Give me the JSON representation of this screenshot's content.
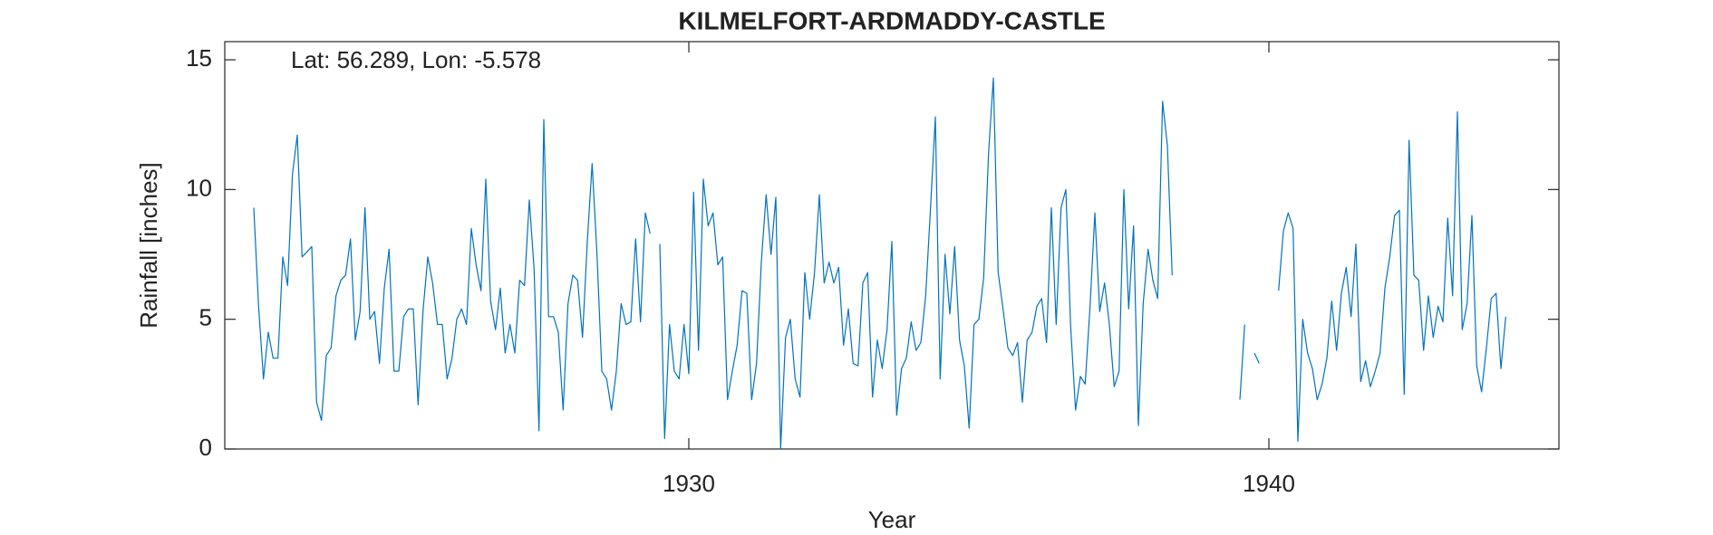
{
  "chart_data": {
    "type": "line",
    "title": "KILMELFORT-ARDMADDY-CASTLE",
    "annotation": "Lat: 56.289, Lon: -5.578",
    "x_label": "Year",
    "y_label": "Rainfall [inches]",
    "xlim": [
      1922,
      1945
    ],
    "xticks": [
      1930,
      1940
    ],
    "ylim": [
      0,
      15.7
    ],
    "yticks": [
      0,
      5,
      10,
      15
    ],
    "x": [
      1922.5,
      1922.583,
      1922.667,
      1922.75,
      1922.833,
      1922.917,
      1923,
      1923.083,
      1923.167,
      1923.25,
      1923.333,
      1923.417,
      1923.5,
      1923.583,
      1923.667,
      1923.75,
      1923.833,
      1923.917,
      1924,
      1924.083,
      1924.167,
      1924.25,
      1924.333,
      1924.417,
      1924.5,
      1924.583,
      1924.667,
      1924.75,
      1924.833,
      1924.917,
      1925,
      1925.083,
      1925.167,
      1925.25,
      1925.333,
      1925.417,
      1925.5,
      1925.583,
      1925.667,
      1925.75,
      1925.833,
      1925.917,
      1926,
      1926.083,
      1926.167,
      1926.25,
      1926.333,
      1926.417,
      1926.5,
      1926.583,
      1926.667,
      1926.75,
      1926.833,
      1926.917,
      1927,
      1927.083,
      1927.167,
      1927.25,
      1927.333,
      1927.417,
      1927.5,
      1927.583,
      1927.667,
      1927.75,
      1927.833,
      1927.917,
      1928,
      1928.083,
      1928.167,
      1928.25,
      1928.333,
      1928.417,
      1928.5,
      1928.583,
      1928.667,
      1928.75,
      1928.833,
      1928.917,
      1929,
      1929.083,
      1929.167,
      1929.25,
      1929.333,
      1929.417,
      1929.5,
      1929.583,
      1929.667,
      1929.75,
      1929.833,
      1929.917,
      1930,
      1930.083,
      1930.167,
      1930.25,
      1930.333,
      1930.417,
      1930.5,
      1930.583,
      1930.667,
      1930.75,
      1930.833,
      1930.917,
      1931,
      1931.083,
      1931.167,
      1931.25,
      1931.333,
      1931.417,
      1931.5,
      1931.583,
      1931.667,
      1931.75,
      1931.833,
      1931.917,
      1932,
      1932.083,
      1932.167,
      1932.25,
      1932.333,
      1932.417,
      1932.5,
      1932.583,
      1932.667,
      1932.75,
      1932.833,
      1932.917,
      1933,
      1933.083,
      1933.167,
      1933.25,
      1933.333,
      1933.417,
      1933.5,
      1933.583,
      1933.667,
      1933.75,
      1933.833,
      1933.917,
      1934,
      1934.083,
      1934.167,
      1934.25,
      1934.333,
      1934.417,
      1934.5,
      1934.583,
      1934.667,
      1934.75,
      1934.833,
      1934.917,
      1935,
      1935.083,
      1935.167,
      1935.25,
      1935.333,
      1935.417,
      1935.5,
      1935.583,
      1935.667,
      1935.75,
      1935.833,
      1935.917,
      1936,
      1936.083,
      1936.167,
      1936.25,
      1936.333,
      1936.417,
      1936.5,
      1936.583,
      1936.667,
      1936.75,
      1936.833,
      1936.917,
      1937,
      1937.083,
      1937.167,
      1937.25,
      1937.333,
      1937.417,
      1937.5,
      1937.583,
      1937.667,
      1937.75,
      1937.833,
      1937.917,
      1938,
      1938.083,
      1938.167,
      1938.25,
      1938.333,
      1938.417,
      1938.5,
      1938.583,
      1938.667,
      1938.75,
      1938.833,
      1938.917,
      1939,
      1939.083,
      1939.167,
      1939.25,
      1939.333,
      1939.417,
      1939.5,
      1939.583,
      1939.667,
      1939.75,
      1939.833,
      1939.917,
      1940,
      1940.083,
      1940.167,
      1940.25,
      1940.333,
      1940.417,
      1940.5,
      1940.583,
      1940.667,
      1940.75,
      1940.833,
      1940.917,
      1941,
      1941.083,
      1941.167,
      1941.25,
      1941.333,
      1941.417,
      1941.5,
      1941.583,
      1941.667,
      1941.75,
      1941.833,
      1941.917,
      1942,
      1942.083,
      1942.167,
      1942.25,
      1942.333,
      1942.417,
      1942.5,
      1942.583,
      1942.667,
      1942.75,
      1942.833,
      1942.917,
      1943,
      1943.083,
      1943.167,
      1943.25,
      1943.333,
      1943.417,
      1943.5,
      1943.583,
      1943.667,
      1943.75,
      1943.833,
      1943.917,
      1944,
      1944.083
    ],
    "series": [
      {
        "name": "Rainfall",
        "color": "#0072bd",
        "values": [
          9.3,
          5.5,
          2.7,
          4.5,
          3.5,
          3.5,
          7.4,
          6.3,
          10.6,
          12.1,
          7.4,
          7.6,
          7.8,
          1.8,
          1.1,
          3.6,
          3.9,
          5.9,
          6.5,
          6.7,
          8.1,
          4.2,
          5.3,
          9.3,
          5.0,
          5.3,
          3.3,
          6.2,
          7.7,
          3.0,
          3.0,
          5.1,
          5.4,
          5.4,
          1.7,
          5.3,
          7.4,
          6.4,
          4.8,
          4.8,
          2.7,
          3.5,
          5.0,
          5.4,
          4.8,
          8.5,
          7.1,
          6.1,
          10.4,
          5.7,
          4.6,
          6.2,
          3.7,
          4.8,
          3.7,
          6.5,
          6.3,
          9.6,
          6.9,
          0.7,
          12.7,
          5.1,
          5.1,
          4.5,
          1.5,
          5.6,
          6.7,
          6.5,
          4.3,
          8.0,
          11.0,
          7.5,
          3.0,
          2.7,
          1.5,
          3.0,
          5.6,
          4.8,
          4.9,
          8.1,
          4.9,
          9.1,
          8.3,
          null,
          7.9,
          0.4,
          4.8,
          3.0,
          2.7,
          4.8,
          2.9,
          9.9,
          3.8,
          10.4,
          8.6,
          9.1,
          7.1,
          7.4,
          1.9,
          3.0,
          4.0,
          6.1,
          6.0,
          1.9,
          3.3,
          7.2,
          9.8,
          7.5,
          9.7,
          0.0,
          4.3,
          5.0,
          2.7,
          2.0,
          6.8,
          5.0,
          6.8,
          9.8,
          6.4,
          7.2,
          6.4,
          7.0,
          4.0,
          5.4,
          3.3,
          3.2,
          6.4,
          6.8,
          2.0,
          4.2,
          3.1,
          4.6,
          8.0,
          1.3,
          3.1,
          3.5,
          4.9,
          3.8,
          4.1,
          5.9,
          9.3,
          12.8,
          2.7,
          7.5,
          5.2,
          7.8,
          4.2,
          3.2,
          0.8,
          4.8,
          5.0,
          6.6,
          11.4,
          14.3,
          6.8,
          5.4,
          3.9,
          3.6,
          4.1,
          1.8,
          4.2,
          4.5,
          5.5,
          5.8,
          4.1,
          9.3,
          4.8,
          9.3,
          10.0,
          4.7,
          1.5,
          2.8,
          2.5,
          5.5,
          9.1,
          5.3,
          6.4,
          4.8,
          2.4,
          3.0,
          10.0,
          5.4,
          8.6,
          0.9,
          5.6,
          7.7,
          6.5,
          5.8,
          13.4,
          11.7,
          6.7,
          null,
          null,
          null,
          null,
          null,
          null,
          null,
          null,
          null,
          null,
          null,
          null,
          null,
          1.9,
          4.8,
          null,
          3.7,
          3.3,
          null,
          null,
          null,
          6.1,
          8.4,
          9.1,
          8.5,
          0.3,
          5.0,
          3.7,
          3.1,
          1.9,
          2.5,
          3.5,
          5.7,
          3.8,
          6.0,
          7.0,
          5.1,
          7.9,
          2.6,
          3.4,
          2.4,
          3.0,
          3.7,
          6.2,
          7.4,
          9.0,
          9.2,
          2.1,
          11.9,
          6.7,
          6.5,
          3.8,
          5.9,
          4.3,
          5.5,
          4.9,
          8.9,
          5.9,
          13.0,
          4.6,
          5.6,
          9.0,
          3.2,
          2.2,
          3.9,
          5.8,
          6.0,
          3.1,
          5.1
        ]
      }
    ]
  }
}
